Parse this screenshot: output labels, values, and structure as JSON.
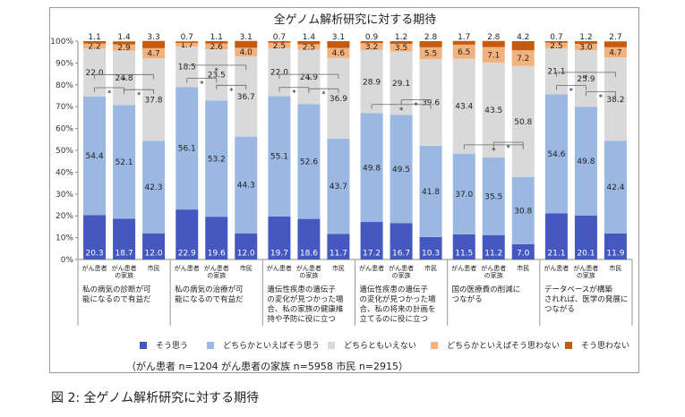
{
  "chart_data": {
    "type": "bar",
    "stacked": true,
    "title": "全ゲノム解析研究に対する期待",
    "ylim": [
      0,
      100
    ],
    "y_ticks": [
      "0%",
      "10%",
      "20%",
      "30%",
      "40%",
      "50%",
      "60%",
      "70%",
      "80%",
      "90%",
      "100%"
    ],
    "grid": false,
    "legend_position": "bottom",
    "series": [
      {
        "name": "そう思う",
        "color": "#4558bf"
      },
      {
        "name": "どちらかといえばそう思う",
        "color": "#9bb8e2"
      },
      {
        "name": "どちらともいえない",
        "color": "#d9d9d9"
      },
      {
        "name": "どちらかといえばそう思わない",
        "color": "#f2b27d"
      },
      {
        "name": "そう思わない",
        "color": "#c55a11"
      }
    ],
    "groups": [
      {
        "label": [
          "私の病気の診断が可",
          "能になるので有益だ"
        ],
        "bars": [
          {
            "category": [
              "がん患者"
            ],
            "values": [
              20.3,
              54.4,
              22.0,
              2.2,
              1.1
            ]
          },
          {
            "category": [
              "がん患者",
              "の家族"
            ],
            "values": [
              18.7,
              52.1,
              24.8,
              2.9,
              1.4
            ]
          },
          {
            "category": [
              "市民"
            ],
            "values": [
              12.0,
              42.3,
              37.8,
              4.7,
              3.3
            ]
          }
        ]
      },
      {
        "label": [
          "私の病気の治療が可",
          "能になるので有益だ"
        ],
        "bars": [
          {
            "category": [
              "がん患者"
            ],
            "values": [
              22.9,
              56.1,
              18.5,
              1.7,
              0.7
            ]
          },
          {
            "category": [
              "がん患者",
              "の家族"
            ],
            "values": [
              19.6,
              53.2,
              23.5,
              2.6,
              1.1
            ]
          },
          {
            "category": [
              "市民"
            ],
            "values": [
              12.0,
              44.3,
              36.7,
              4.0,
              3.1
            ]
          }
        ]
      },
      {
        "label": [
          "遺伝性疾患の遺伝子",
          "の変化が見つかった場",
          "合、私の家族の健康維",
          "持や予防に役に立つ"
        ],
        "bars": [
          {
            "category": [
              "がん患者"
            ],
            "values": [
              19.7,
              55.1,
              22.0,
              2.5,
              0.7
            ]
          },
          {
            "category": [
              "がん患者",
              "の家族"
            ],
            "values": [
              18.6,
              52.6,
              24.9,
              2.5,
              1.4
            ]
          },
          {
            "category": [
              "市民"
            ],
            "values": [
              11.7,
              43.7,
              36.9,
              4.6,
              3.1
            ]
          }
        ]
      },
      {
        "label": [
          "遺伝性疾患の遺伝子",
          "の変化が見つかった場",
          "合、私の将来の計画を",
          "立てるのに役に立つ"
        ],
        "bars": [
          {
            "category": [
              "がん患者"
            ],
            "values": [
              17.2,
              49.8,
              28.9,
              3.2,
              0.9
            ]
          },
          {
            "category": [
              "がん患者",
              "の家族"
            ],
            "values": [
              16.7,
              49.5,
              29.1,
              3.5,
              1.2
            ]
          },
          {
            "category": [
              "市民"
            ],
            "values": [
              10.3,
              41.8,
              39.6,
              5.5,
              2.8
            ]
          }
        ]
      },
      {
        "label": [
          "国の医療費の削減に",
          "つながる"
        ],
        "bars": [
          {
            "category": [
              "がん患者"
            ],
            "values": [
              11.5,
              37.0,
              43.4,
              6.5,
              1.7
            ]
          },
          {
            "category": [
              "がん患者",
              "の家族"
            ],
            "values": [
              11.2,
              35.5,
              43.5,
              7.1,
              2.8
            ]
          },
          {
            "category": [
              "市民"
            ],
            "values": [
              7.0,
              30.8,
              50.8,
              7.2,
              4.2
            ]
          }
        ]
      },
      {
        "label": [
          "データベースが構築",
          "されれば、医学の発展に",
          "つながる"
        ],
        "bars": [
          {
            "category": [
              "がん患者"
            ],
            "values": [
              21.1,
              54.6,
              21.1,
              2.5,
              0.7
            ]
          },
          {
            "category": [
              "がん患者",
              "の家族"
            ],
            "values": [
              20.1,
              49.8,
              25.9,
              3.0,
              1.2
            ]
          },
          {
            "category": [
              "市民"
            ],
            "values": [
              11.9,
              42.4,
              38.2,
              4.7,
              2.7
            ]
          }
        ]
      }
    ],
    "significance": [
      {
        "group": 0,
        "pairs": [
          [
            0,
            1
          ],
          [
            1,
            2
          ],
          [
            0,
            2
          ]
        ],
        "mark": "*"
      },
      {
        "group": 1,
        "pairs": [
          [
            0,
            1
          ],
          [
            1,
            2
          ],
          [
            0,
            2
          ]
        ],
        "mark": "*"
      },
      {
        "group": 2,
        "pairs": [
          [
            0,
            1
          ],
          [
            1,
            2
          ],
          [
            0,
            2
          ]
        ],
        "mark": "*"
      },
      {
        "group": 3,
        "pairs": [
          [
            0,
            2
          ],
          [
            1,
            2
          ]
        ],
        "mark": "*"
      },
      {
        "group": 4,
        "pairs": [
          [
            0,
            2
          ],
          [
            1,
            2
          ]
        ],
        "mark": "*"
      },
      {
        "group": 5,
        "pairs": [
          [
            0,
            1
          ],
          [
            1,
            2
          ],
          [
            0,
            2
          ]
        ],
        "mark": "*"
      }
    ]
  },
  "sample_note": "（がん患者 n=1204 がん患者の家族 n=5958 市民 n=2915）",
  "caption": "図 2: 全ゲノム解析研究に対する期待"
}
